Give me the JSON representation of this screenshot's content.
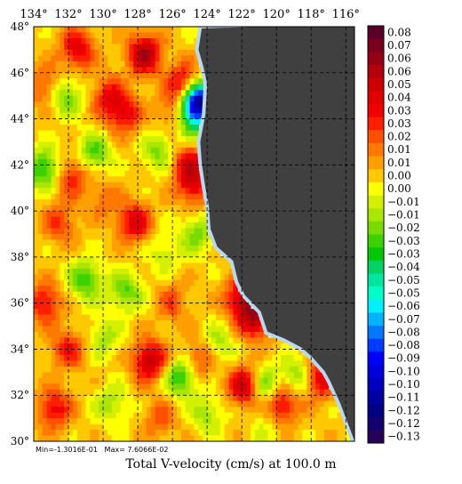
{
  "map": {
    "lon_labels": [
      "134°",
      "132°",
      "130°",
      "128°",
      "126°",
      "124°",
      "122°",
      "120°",
      "118°",
      "116°"
    ],
    "lat_labels": [
      "48°",
      "46°",
      "44°",
      "42°",
      "40°",
      "38°",
      "36°",
      "34°",
      "32°",
      "30°"
    ],
    "lon_range": [
      -134,
      -115.5
    ],
    "lat_range": [
      30,
      48
    ],
    "grid_spacing_deg": 2,
    "land_color": "#404040",
    "coast_color": "#b8d8f0"
  },
  "stats": {
    "min_text": "Min=-1.3016E-01",
    "max_text": "Max= 7.6066E-02"
  },
  "caption": "Total V-velocity (cm/s) at 100.0 m",
  "legend": {
    "entries": [
      {
        "label": "0.08",
        "color": "#5a0028"
      },
      {
        "label": "0.07",
        "color": "#78001e"
      },
      {
        "label": "0.06",
        "color": "#960014"
      },
      {
        "label": "0.06",
        "color": "#b4000a"
      },
      {
        "label": "0.05",
        "color": "#cc0000"
      },
      {
        "label": "0.04",
        "color": "#e00000"
      },
      {
        "label": "0.03",
        "color": "#f00000"
      },
      {
        "label": "0.03",
        "color": "#ff1e00"
      },
      {
        "label": "0.02",
        "color": "#ff5000"
      },
      {
        "label": "0.01",
        "color": "#ff7800"
      },
      {
        "label": "0.01",
        "color": "#ffa000"
      },
      {
        "label": "0.00",
        "color": "#ffc800"
      },
      {
        "label": "0.00",
        "color": "#ffff00"
      },
      {
        "label": "−0.01",
        "color": "#d2f000"
      },
      {
        "label": "−0.01",
        "color": "#aae600"
      },
      {
        "label": "−0.02",
        "color": "#78dc00"
      },
      {
        "label": "−0.03",
        "color": "#3cd200"
      },
      {
        "label": "−0.03",
        "color": "#00c800"
      },
      {
        "label": "−0.04",
        "color": "#00d264"
      },
      {
        "label": "−0.05",
        "color": "#00e6a0"
      },
      {
        "label": "−0.05",
        "color": "#00ffc8"
      },
      {
        "label": "−0.06",
        "color": "#00f0ff"
      },
      {
        "label": "−0.07",
        "color": "#00b4ff"
      },
      {
        "label": "−0.08",
        "color": "#0078ff"
      },
      {
        "label": "−0.08",
        "color": "#003cff"
      },
      {
        "label": "−0.09",
        "color": "#0000ff"
      },
      {
        "label": "−0.10",
        "color": "#0000dc"
      },
      {
        "label": "−0.10",
        "color": "#0000be"
      },
      {
        "label": "−0.11",
        "color": "#0000a0"
      },
      {
        "label": "−0.12",
        "color": "#000082"
      },
      {
        "label": "−0.12",
        "color": "#14006e"
      },
      {
        "label": "−0.13",
        "color": "#28005a"
      }
    ]
  },
  "features": [
    {
      "lon": -127.6,
      "lat": 46.8,
      "v": 0.055
    },
    {
      "lon": -129.7,
      "lat": 45.0,
      "v": 0.03
    },
    {
      "lon": -125.3,
      "lat": 45.5,
      "v": 0.045
    },
    {
      "lon": -124.5,
      "lat": 44.8,
      "v": -0.11
    },
    {
      "lon": -124.8,
      "lat": 44.0,
      "v": -0.04
    },
    {
      "lon": -126.0,
      "lat": 44.3,
      "v": 0.02
    },
    {
      "lon": -128.8,
      "lat": 44.2,
      "v": 0.035
    },
    {
      "lon": -131.5,
      "lat": 47.0,
      "v": 0.04
    },
    {
      "lon": -133.3,
      "lat": 45.4,
      "v": 0.025
    },
    {
      "lon": -132.2,
      "lat": 45.0,
      "v": -0.03
    },
    {
      "lon": -130.5,
      "lat": 42.5,
      "v": -0.03
    },
    {
      "lon": -126.8,
      "lat": 42.6,
      "v": -0.025
    },
    {
      "lon": -133.4,
      "lat": 41.8,
      "v": -0.04
    },
    {
      "lon": -131.8,
      "lat": 41.5,
      "v": 0.03
    },
    {
      "lon": -125.0,
      "lat": 42.0,
      "v": 0.04
    },
    {
      "lon": -124.8,
      "lat": 41.0,
      "v": 0.03
    },
    {
      "lon": -128.2,
      "lat": 39.5,
      "v": 0.04
    },
    {
      "lon": -132.5,
      "lat": 39.5,
      "v": 0.025
    },
    {
      "lon": -130.0,
      "lat": 40.5,
      "v": 0.015
    },
    {
      "lon": -124.6,
      "lat": 39.0,
      "v": -0.025
    },
    {
      "lon": -126.5,
      "lat": 38.2,
      "v": -0.015
    },
    {
      "lon": -131.0,
      "lat": 37.0,
      "v": -0.035
    },
    {
      "lon": -133.4,
      "lat": 36.0,
      "v": 0.035
    },
    {
      "lon": -128.7,
      "lat": 36.5,
      "v": -0.03
    },
    {
      "lon": -126.0,
      "lat": 36.0,
      "v": 0.02
    },
    {
      "lon": -122.0,
      "lat": 36.2,
      "v": 0.045
    },
    {
      "lon": -121.2,
      "lat": 35.3,
      "v": 0.05
    },
    {
      "lon": -132.0,
      "lat": 34.0,
      "v": 0.03
    },
    {
      "lon": -130.0,
      "lat": 34.5,
      "v": -0.02
    },
    {
      "lon": -127.3,
      "lat": 33.5,
      "v": 0.05
    },
    {
      "lon": -125.5,
      "lat": 32.8,
      "v": -0.04
    },
    {
      "lon": -124.5,
      "lat": 33.5,
      "v": 0.025
    },
    {
      "lon": -121.8,
      "lat": 32.4,
      "v": 0.05
    },
    {
      "lon": -120.7,
      "lat": 32.4,
      "v": -0.035
    },
    {
      "lon": -119.7,
      "lat": 31.6,
      "v": 0.04
    },
    {
      "lon": -118.6,
      "lat": 32.8,
      "v": -0.03
    },
    {
      "lon": -117.6,
      "lat": 32.7,
      "v": 0.045
    },
    {
      "lon": -123.3,
      "lat": 34.2,
      "v": -0.02
    },
    {
      "lon": -132.8,
      "lat": 31.4,
      "v": 0.035
    },
    {
      "lon": -129.5,
      "lat": 31.6,
      "v": -0.02
    },
    {
      "lon": -126.7,
      "lat": 31.0,
      "v": 0.02
    },
    {
      "lon": -124.0,
      "lat": 31.2,
      "v": -0.02
    },
    {
      "lon": -120.5,
      "lat": 30.6,
      "v": -0.01
    }
  ],
  "coastline": [
    [
      -124.4,
      48.0
    ],
    [
      -124.6,
      47.0
    ],
    [
      -124.3,
      46.2
    ],
    [
      -124.1,
      45.5
    ],
    [
      -124.2,
      44.2
    ],
    [
      -124.5,
      43.0
    ],
    [
      -124.4,
      42.0
    ],
    [
      -124.2,
      41.0
    ],
    [
      -124.0,
      40.2
    ],
    [
      -123.9,
      39.2
    ],
    [
      -123.5,
      38.4
    ],
    [
      -122.6,
      37.8
    ],
    [
      -122.3,
      36.9
    ],
    [
      -121.9,
      36.3
    ],
    [
      -121.0,
      35.6
    ],
    [
      -120.6,
      34.7
    ],
    [
      -119.6,
      34.4
    ],
    [
      -118.6,
      34.0
    ],
    [
      -118.0,
      33.6
    ],
    [
      -117.3,
      33.0
    ],
    [
      -117.0,
      32.6
    ],
    [
      -116.4,
      31.6
    ],
    [
      -115.8,
      30.4
    ],
    [
      -115.6,
      30.0
    ]
  ]
}
